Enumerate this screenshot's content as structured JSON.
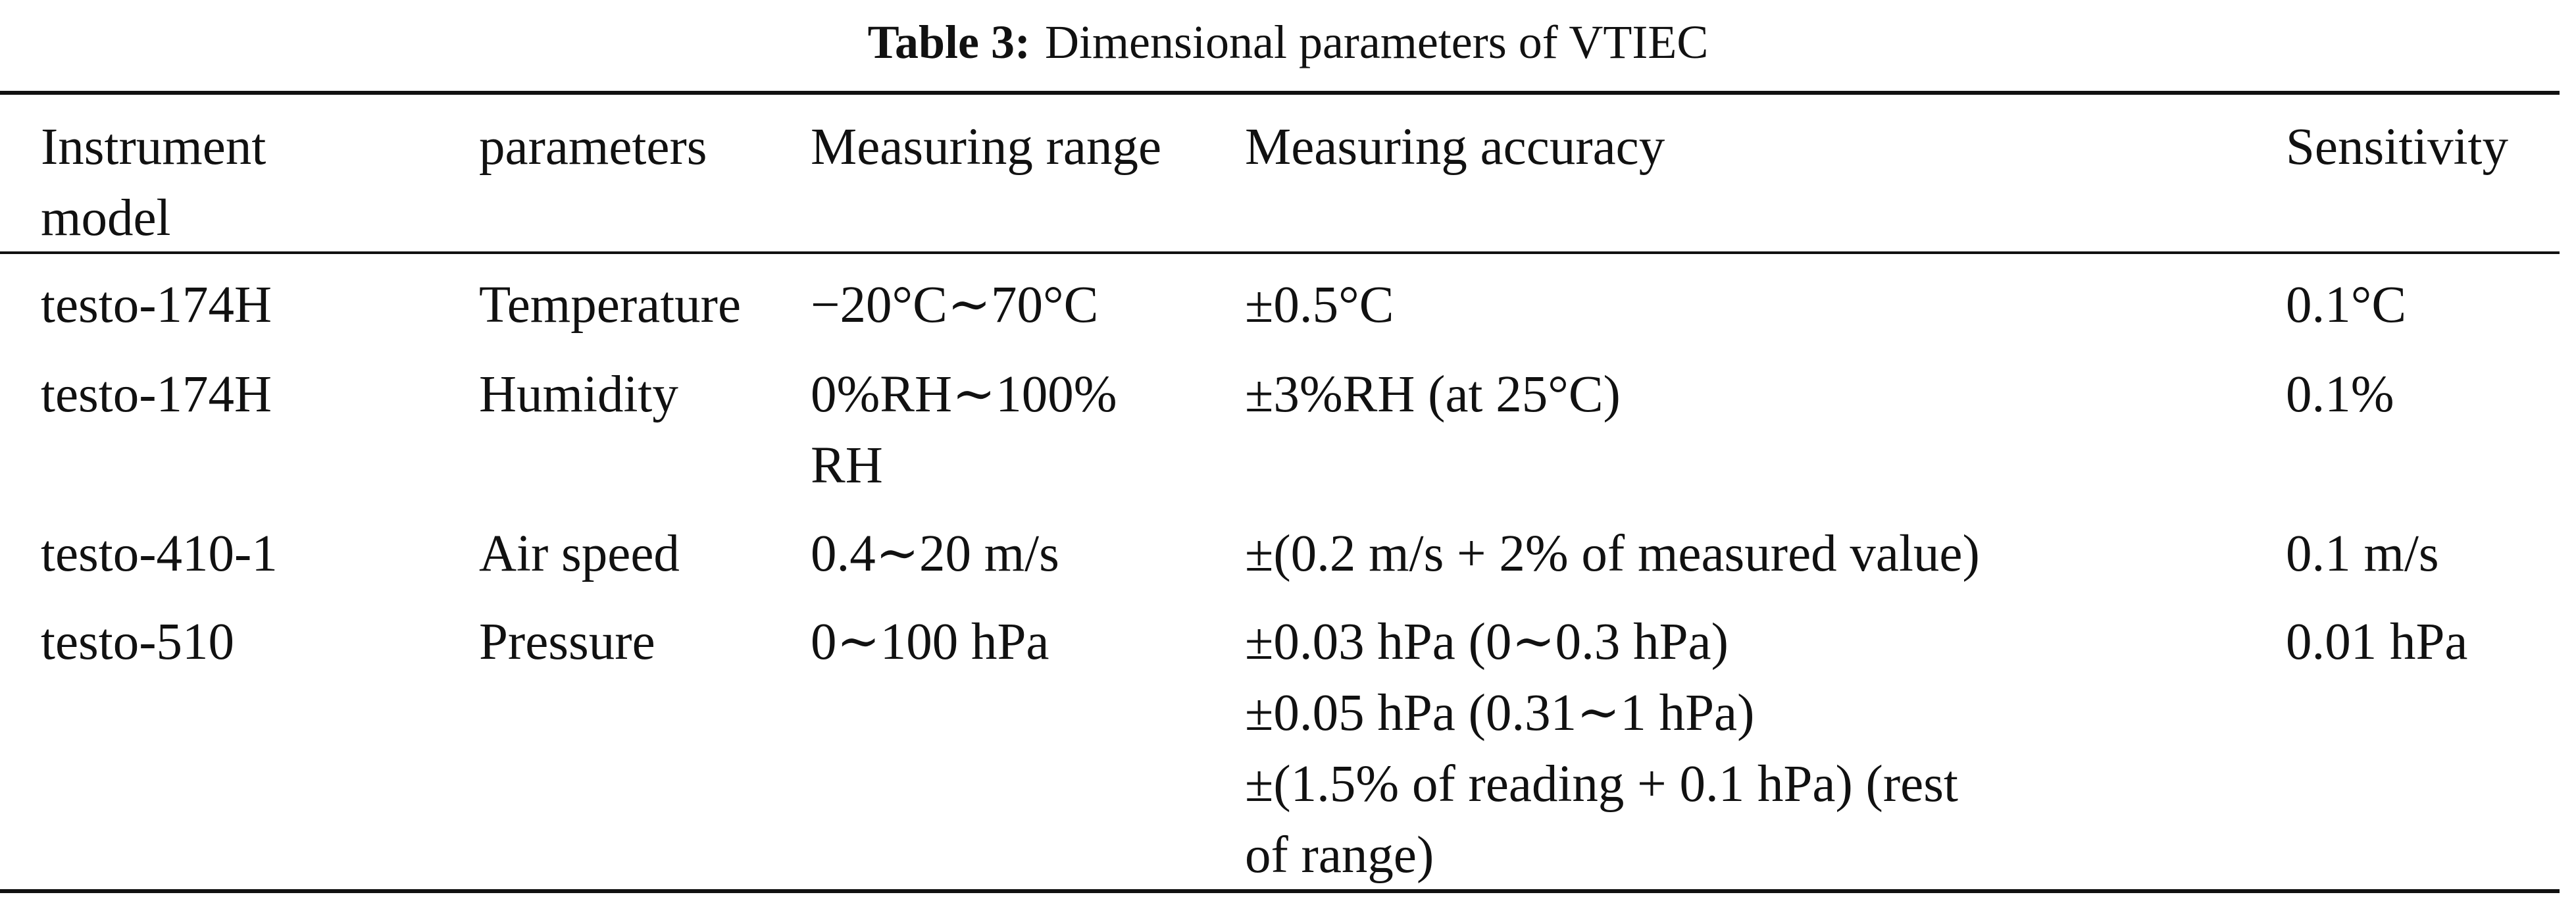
{
  "caption": {
    "label": "Table 3:",
    "text": "Dimensional parameters of VTIEC"
  },
  "table": {
    "headers": [
      "Instrument\nmodel",
      "parameters",
      "Measuring range",
      "Measuring accuracy",
      "Sensitivity"
    ],
    "rows": [
      [
        "testo-174H",
        "Temperature",
        "−20°C∼70°C",
        "±0.5°C",
        "0.1°C"
      ],
      [
        "testo-174H",
        "Humidity",
        "0%RH∼100%\nRH",
        "±3%RH (at 25°C)",
        "0.1%"
      ],
      [
        "testo-410-1",
        "Air speed",
        "0.4∼20 m/s",
        "±(0.2 m/s + 2% of measured value)",
        "0.1 m/s"
      ],
      [
        "testo-510",
        "Pressure",
        "0∼100 hPa",
        "±0.03 hPa (0∼0.3 hPa)\n±0.05 hPa (0.31∼1 hPa)\n±(1.5% of reading + 0.1 hPa) (rest\nof range)",
        "0.01 hPa"
      ]
    ]
  }
}
